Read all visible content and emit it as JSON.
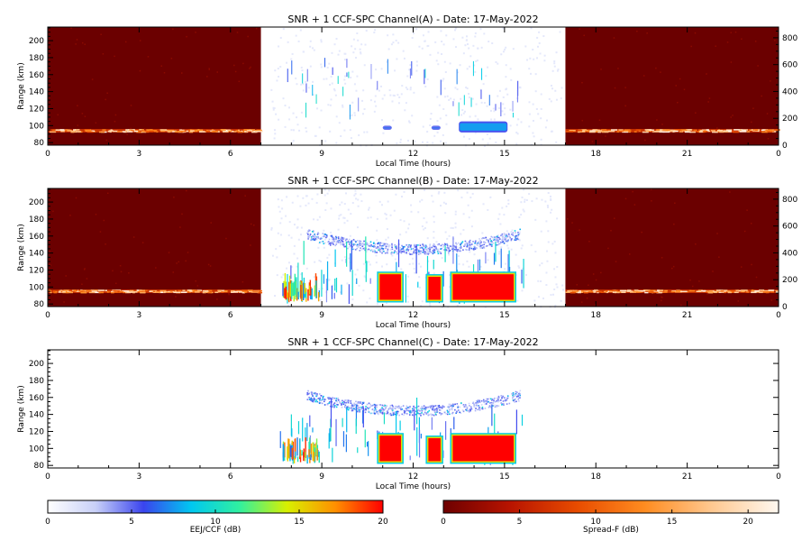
{
  "chart_data": [
    {
      "type": "heatmap",
      "title": "SNR + 1 CCF-SPC Channel(A) - Date: 17-May-2022",
      "xlabel": "Local Time (hours)",
      "ylabel": "Range (km)",
      "xlim": [
        0,
        24
      ],
      "ylim": [
        77,
        216
      ],
      "x_ticks": [
        "0",
        "3",
        "6",
        "9",
        "12",
        "15",
        "18",
        "21",
        "0"
      ],
      "y_ticks": [
        "80",
        "100",
        "120",
        "140",
        "160",
        "180",
        "200"
      ],
      "y2_ticks": [
        "0",
        "200",
        "400",
        "600",
        "800"
      ],
      "y2lim": [
        0,
        880
      ],
      "night_spread_f": [
        {
          "start_hour": 0,
          "end_hour": 7.0
        },
        {
          "start_hour": 17.0,
          "end_hour": 24
        }
      ],
      "spread_f_layer": {
        "range_km": [
          92,
          96
        ],
        "intensity_db": 15
      },
      "eej_echoes": [
        {
          "hour_start": 11.0,
          "hour_end": 11.3,
          "range_km": [
            95,
            100
          ],
          "db": 8
        },
        {
          "hour_start": 12.6,
          "hour_end": 12.9,
          "range_km": [
            95,
            100
          ],
          "db": 8
        },
        {
          "hour_start": 13.5,
          "hour_end": 15.1,
          "range_km": [
            92,
            105
          ],
          "db": 9
        }
      ],
      "grid": false
    },
    {
      "type": "heatmap",
      "title": "SNR + 1 CCF-SPC Channel(B) - Date: 17-May-2022",
      "xlabel": "Local Time (hours)",
      "ylabel": "Range (km)",
      "xlim": [
        0,
        24
      ],
      "ylim": [
        77,
        216
      ],
      "x_ticks": [
        "0",
        "3",
        "6",
        "9",
        "12",
        "15",
        "18",
        "21",
        "0"
      ],
      "y_ticks": [
        "80",
        "100",
        "120",
        "140",
        "160",
        "180",
        "200"
      ],
      "y2_ticks": [
        "0",
        "200",
        "400",
        "600",
        "800"
      ],
      "y2lim": [
        0,
        880
      ],
      "night_spread_f": [
        {
          "start_hour": 0,
          "end_hour": 7.0
        },
        {
          "start_hour": 17.0,
          "end_hour": 24
        }
      ],
      "spread_f_layer": {
        "range_km": [
          93,
          97
        ],
        "intensity_db": 15
      },
      "eej_echoes": [
        {
          "hour_start": 10.9,
          "hour_end": 11.6,
          "range_km": [
            85,
            115
          ],
          "db": 20
        },
        {
          "hour_start": 12.5,
          "hour_end": 12.9,
          "range_km": [
            85,
            112
          ],
          "db": 20
        },
        {
          "hour_start": 13.3,
          "hour_end": 15.3,
          "range_km": [
            85,
            115
          ],
          "db": 20
        }
      ],
      "upper_arc": {
        "hour_start": 8.5,
        "hour_end": 15.5,
        "range_km": [
          140,
          160
        ],
        "db": 4
      },
      "grid": false
    },
    {
      "type": "heatmap",
      "title": "SNR + 1 CCF-SPC Channel(C) - Date: 17-May-2022",
      "xlabel": "Local Time (hours)",
      "ylabel": "Range (km)",
      "xlim": [
        0,
        24
      ],
      "ylim": [
        77,
        216
      ],
      "x_ticks": [
        "0",
        "3",
        "6",
        "9",
        "12",
        "15",
        "18",
        "21",
        "0"
      ],
      "y_ticks": [
        "80",
        "100",
        "120",
        "140",
        "160",
        "180",
        "200"
      ],
      "eej_echoes": [
        {
          "hour_start": 10.9,
          "hour_end": 11.6,
          "range_km": [
            85,
            115
          ],
          "db": 20
        },
        {
          "hour_start": 12.5,
          "hour_end": 12.9,
          "range_km": [
            85,
            112
          ],
          "db": 20
        },
        {
          "hour_start": 13.3,
          "hour_end": 15.3,
          "range_km": [
            85,
            115
          ],
          "db": 20
        }
      ],
      "upper_arc": {
        "hour_start": 8.5,
        "hour_end": 15.5,
        "range_km": [
          140,
          160
        ],
        "db": 4
      },
      "grid": false
    }
  ],
  "colorbars": [
    {
      "label": "EEJ/CCF (dB)",
      "range": [
        0,
        20
      ],
      "ticks": [
        "0",
        "5",
        "10",
        "15",
        "20"
      ],
      "colors": [
        "#ffffff",
        "#c8d0f8",
        "#3a44ee",
        "#00c8f0",
        "#30f0a0",
        "#d8f000",
        "#ff9000",
        "#ff0000"
      ]
    },
    {
      "label": "Spread-F (dB)",
      "range": [
        0,
        22
      ],
      "ticks": [
        "0",
        "5",
        "10",
        "15",
        "20"
      ],
      "colors": [
        "#6e0000",
        "#b81400",
        "#e84c00",
        "#ff8c20",
        "#ffc890",
        "#fff8f0"
      ]
    }
  ]
}
